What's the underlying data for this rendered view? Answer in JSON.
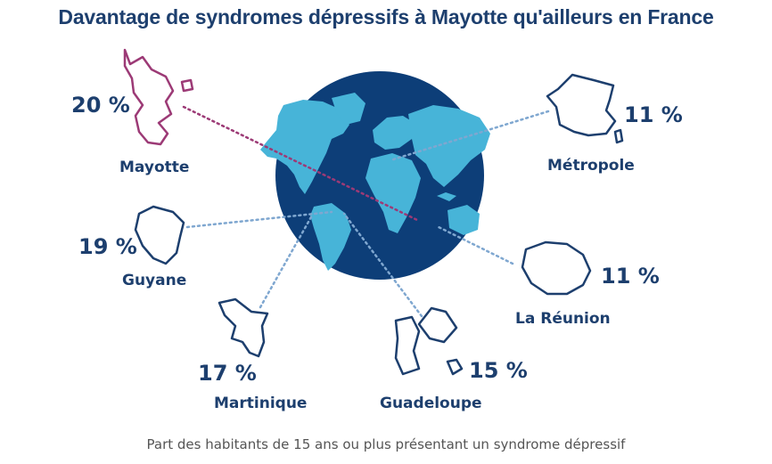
{
  "title": "Davantage de syndromes dépressifs à Mayotte qu'ailleurs en France",
  "caption": "Part des habitants de 15 ans ou plus présentant un syndrome dépressif",
  "colors": {
    "title": "#1d3f6e",
    "ocean": "#0d3e78",
    "land": "#47b4d8",
    "outline": "#1d3f6e",
    "mayotte": "#9c3a76",
    "connector": "#7fa7d0",
    "connector_mayotte": "#9c3a76"
  },
  "chart_data": {
    "type": "table",
    "unit": "%",
    "regions": [
      {
        "name": "Mayotte",
        "value": 20,
        "label": "20 %",
        "highlight": true,
        "icon": "mayotte-outline"
      },
      {
        "name": "Guyane",
        "value": 19,
        "label": "19 %",
        "highlight": false,
        "icon": "guyane-outline"
      },
      {
        "name": "Martinique",
        "value": 17,
        "label": "17 %",
        "highlight": false,
        "icon": "martinique-outline"
      },
      {
        "name": "Guadeloupe",
        "value": 15,
        "label": "15 %",
        "highlight": false,
        "icon": "guadeloupe-outline"
      },
      {
        "name": "La Réunion",
        "value": 11,
        "label": "11 %",
        "highlight": false,
        "icon": "reunion-outline"
      },
      {
        "name": "Métropole",
        "value": 11,
        "label": "11 %",
        "highlight": false,
        "icon": "france-outline"
      }
    ]
  }
}
